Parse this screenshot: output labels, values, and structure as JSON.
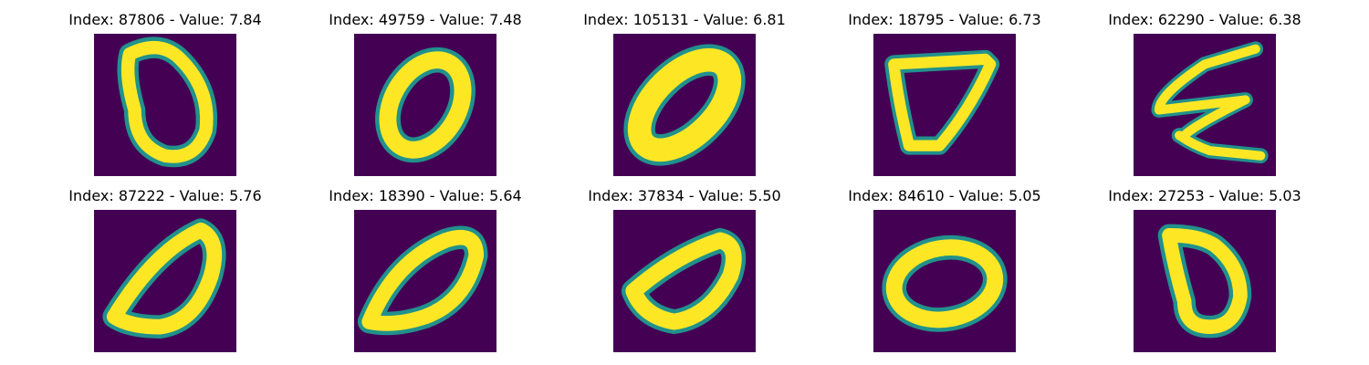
{
  "colors": {
    "background": "#440154",
    "stroke": "#fde725",
    "edge": "#21918c"
  },
  "panels": [
    {
      "title": "Index: 87806 - Value: 7.84",
      "index": 87806,
      "value": 7.84,
      "glyph": "zero-tall"
    },
    {
      "title": "Index: 49759 - Value: 7.48",
      "index": 49759,
      "value": 7.48,
      "glyph": "zero-round"
    },
    {
      "title": "Index: 105131 - Value: 6.81",
      "index": 105131,
      "value": 6.81,
      "glyph": "zero-slanted"
    },
    {
      "title": "Index: 18795 - Value: 6.73",
      "index": 18795,
      "value": 6.73,
      "glyph": "zero-triangular"
    },
    {
      "title": "Index: 62290 - Value: 6.38",
      "index": 62290,
      "value": 6.38,
      "glyph": "scribble"
    },
    {
      "title": "Index: 87222 - Value: 5.76",
      "index": 87222,
      "value": 5.76,
      "glyph": "zero-leaning"
    },
    {
      "title": "Index: 18390 - Value: 5.64",
      "index": 18390,
      "value": 5.64,
      "glyph": "zero-leaning"
    },
    {
      "title": "Index: 37834 - Value: 5.50",
      "index": 37834,
      "value": 5.5,
      "glyph": "zero-flat"
    },
    {
      "title": "Index: 84610 - Value: 5.05",
      "index": 84610,
      "value": 5.05,
      "glyph": "zero-wide"
    },
    {
      "title": "Index: 27253 - Value: 5.03",
      "index": 27253,
      "value": 5.03,
      "glyph": "zero-boxy"
    }
  ]
}
